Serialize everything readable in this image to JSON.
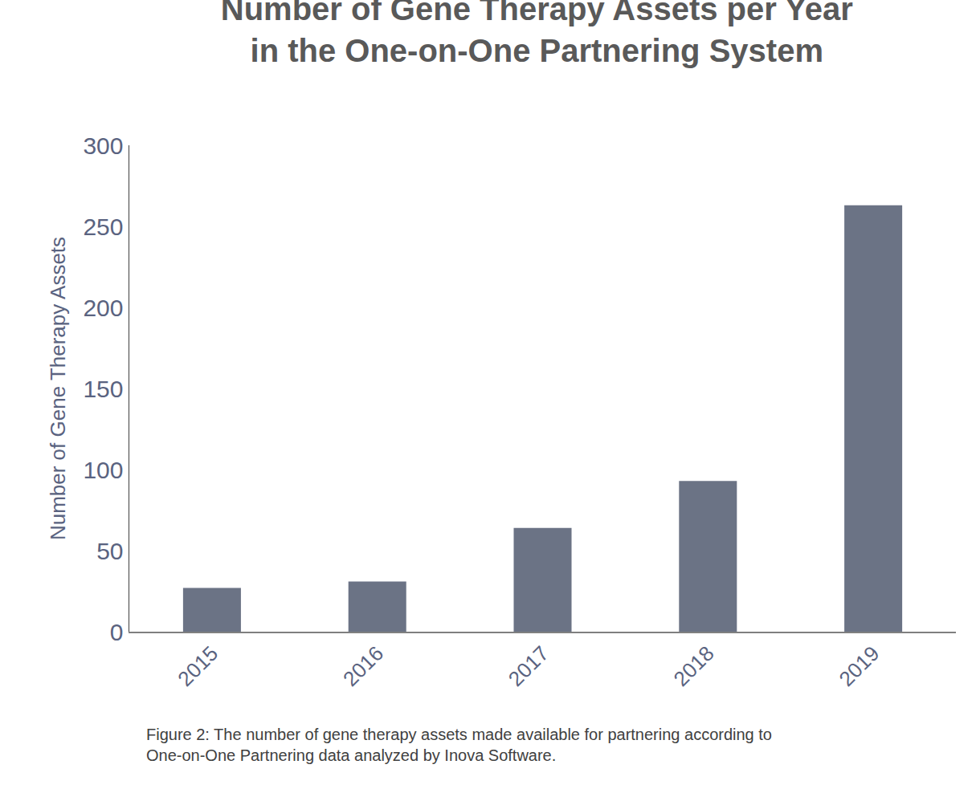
{
  "chart_data": {
    "type": "bar",
    "title": "Number of Gene Therapy Assets per Year\nin the One-on-One Partnering System",
    "ylabel": "Number of Gene Therapy Assets",
    "categories": [
      "2015",
      "2016",
      "2017",
      "2018",
      "2019"
    ],
    "values": [
      27,
      31,
      64,
      93,
      263
    ],
    "color": "#6b7385",
    "ylim": [
      0,
      300
    ],
    "yticks": [
      0,
      50,
      100,
      150,
      200,
      250,
      300
    ],
    "grid": false,
    "annotations": [
      "Figure 2: The number of gene therapy assets made available for partnering according to\nOne-on-One Partnering data analyzed by Inova Software."
    ]
  }
}
